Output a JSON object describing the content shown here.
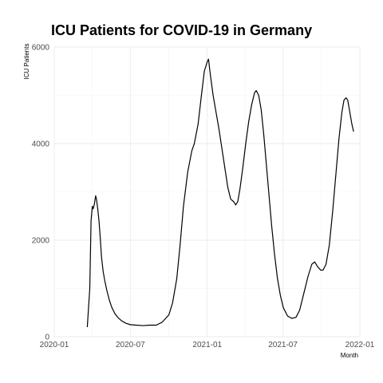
{
  "chart_data": {
    "type": "line",
    "title": "ICU Patients for COVID-19 in Germany",
    "xlabel": "Month",
    "ylabel": "ICU Patients",
    "x_ticks": [
      "2020-01",
      "2020-07",
      "2021-01",
      "2021-07",
      "2022-01"
    ],
    "y_ticks": [
      0,
      2000,
      4000,
      6000
    ],
    "ylim": [
      0,
      6000
    ],
    "xlim": [
      "2020-01-01",
      "2022-01-01"
    ],
    "grid": true,
    "legend": "none",
    "series": [
      {
        "points": [
          [
            "2020-03-20",
            200
          ],
          [
            "2020-03-23",
            600
          ],
          [
            "2020-03-26",
            1000
          ],
          [
            "2020-03-29",
            2400
          ],
          [
            "2020-04-01",
            2700
          ],
          [
            "2020-04-03",
            2650
          ],
          [
            "2020-04-06",
            2750
          ],
          [
            "2020-04-09",
            2920
          ],
          [
            "2020-04-11",
            2850
          ],
          [
            "2020-04-14",
            2650
          ],
          [
            "2020-04-17",
            2400
          ],
          [
            "2020-04-20",
            2050
          ],
          [
            "2020-04-23",
            1650
          ],
          [
            "2020-04-27",
            1350
          ],
          [
            "2020-05-01",
            1150
          ],
          [
            "2020-05-06",
            950
          ],
          [
            "2020-05-12",
            750
          ],
          [
            "2020-05-18",
            600
          ],
          [
            "2020-05-25",
            480
          ],
          [
            "2020-06-01",
            400
          ],
          [
            "2020-06-10",
            330
          ],
          [
            "2020-06-20",
            280
          ],
          [
            "2020-07-01",
            250
          ],
          [
            "2020-07-15",
            240
          ],
          [
            "2020-08-01",
            230
          ],
          [
            "2020-08-15",
            240
          ],
          [
            "2020-09-01",
            240
          ],
          [
            "2020-09-15",
            300
          ],
          [
            "2020-10-01",
            450
          ],
          [
            "2020-10-10",
            700
          ],
          [
            "2020-10-20",
            1200
          ],
          [
            "2020-10-28",
            1900
          ],
          [
            "2020-11-05",
            2700
          ],
          [
            "2020-11-15",
            3400
          ],
          [
            "2020-11-25",
            3850
          ],
          [
            "2020-12-01",
            4000
          ],
          [
            "2020-12-10",
            4400
          ],
          [
            "2020-12-18",
            5000
          ],
          [
            "2020-12-25",
            5500
          ],
          [
            "2021-01-01",
            5700
          ],
          [
            "2021-01-04",
            5750
          ],
          [
            "2021-01-08",
            5450
          ],
          [
            "2021-01-15",
            5000
          ],
          [
            "2021-01-22",
            4650
          ],
          [
            "2021-01-29",
            4300
          ],
          [
            "2021-02-05",
            3900
          ],
          [
            "2021-02-12",
            3500
          ],
          [
            "2021-02-19",
            3100
          ],
          [
            "2021-02-26",
            2850
          ],
          [
            "2021-03-05",
            2800
          ],
          [
            "2021-03-10",
            2730
          ],
          [
            "2021-03-15",
            2800
          ],
          [
            "2021-03-20",
            3050
          ],
          [
            "2021-03-27",
            3500
          ],
          [
            "2021-04-03",
            4000
          ],
          [
            "2021-04-10",
            4450
          ],
          [
            "2021-04-17",
            4800
          ],
          [
            "2021-04-24",
            5050
          ],
          [
            "2021-04-28",
            5100
          ],
          [
            "2021-05-04",
            5000
          ],
          [
            "2021-05-10",
            4700
          ],
          [
            "2021-05-16",
            4200
          ],
          [
            "2021-05-22",
            3600
          ],
          [
            "2021-05-28",
            3000
          ],
          [
            "2021-06-04",
            2300
          ],
          [
            "2021-06-11",
            1700
          ],
          [
            "2021-06-18",
            1200
          ],
          [
            "2021-06-25",
            850
          ],
          [
            "2021-07-02",
            600
          ],
          [
            "2021-07-12",
            430
          ],
          [
            "2021-07-22",
            380
          ],
          [
            "2021-08-01",
            400
          ],
          [
            "2021-08-10",
            550
          ],
          [
            "2021-08-20",
            900
          ],
          [
            "2021-08-30",
            1250
          ],
          [
            "2021-09-08",
            1500
          ],
          [
            "2021-09-15",
            1550
          ],
          [
            "2021-09-22",
            1450
          ],
          [
            "2021-09-29",
            1380
          ],
          [
            "2021-10-05",
            1380
          ],
          [
            "2021-10-12",
            1500
          ],
          [
            "2021-10-20",
            1900
          ],
          [
            "2021-10-28",
            2600
          ],
          [
            "2021-11-05",
            3400
          ],
          [
            "2021-11-12",
            4100
          ],
          [
            "2021-11-19",
            4650
          ],
          [
            "2021-11-24",
            4900
          ],
          [
            "2021-11-29",
            4950
          ],
          [
            "2021-12-03",
            4900
          ],
          [
            "2021-12-08",
            4650
          ],
          [
            "2021-12-13",
            4400
          ],
          [
            "2021-12-17",
            4250
          ]
        ]
      }
    ]
  }
}
